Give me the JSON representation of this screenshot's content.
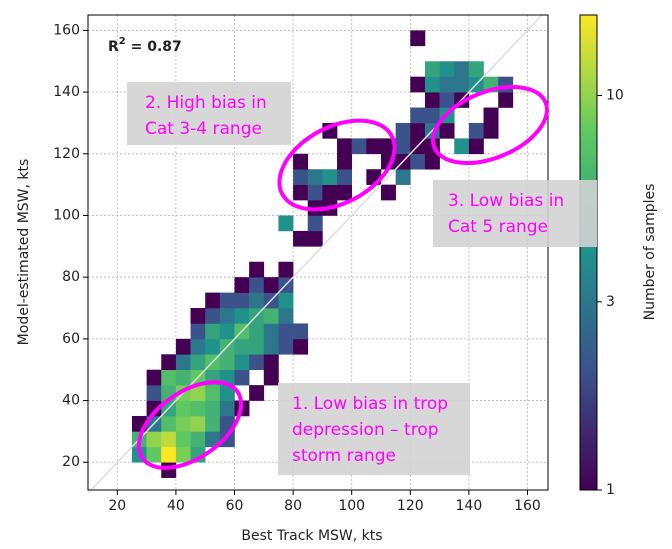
{
  "chart_data": {
    "type": "heatmap",
    "xlabel": "Best Track MSW, kts",
    "ylabel": "Model-estimated MSW, kts",
    "xlim": [
      10,
      167
    ],
    "ylim": [
      11,
      165
    ],
    "xticks": [
      20,
      40,
      60,
      80,
      100,
      120,
      140,
      160
    ],
    "yticks": [
      20,
      40,
      60,
      80,
      100,
      120,
      140,
      160
    ],
    "grid": true,
    "bin_size": 5,
    "cells": [
      [
        35,
        15,
        1
      ],
      [
        25,
        20,
        4
      ],
      [
        30,
        20,
        8
      ],
      [
        35,
        20,
        16
      ],
      [
        40,
        20,
        9
      ],
      [
        45,
        20,
        5
      ],
      [
        25,
        25,
        6
      ],
      [
        30,
        25,
        10
      ],
      [
        35,
        25,
        12
      ],
      [
        40,
        25,
        8
      ],
      [
        45,
        25,
        6
      ],
      [
        50,
        25,
        3
      ],
      [
        55,
        25,
        2
      ],
      [
        25,
        30,
        1
      ],
      [
        30,
        30,
        3
      ],
      [
        35,
        30,
        7
      ],
      [
        40,
        30,
        9
      ],
      [
        45,
        30,
        10
      ],
      [
        50,
        30,
        6
      ],
      [
        55,
        30,
        2
      ],
      [
        30,
        35,
        1
      ],
      [
        35,
        35,
        5
      ],
      [
        40,
        35,
        8
      ],
      [
        45,
        35,
        7
      ],
      [
        50,
        35,
        6
      ],
      [
        55,
        35,
        3
      ],
      [
        60,
        35,
        1
      ],
      [
        30,
        40,
        2
      ],
      [
        35,
        40,
        6
      ],
      [
        40,
        40,
        9
      ],
      [
        45,
        40,
        10
      ],
      [
        50,
        40,
        7
      ],
      [
        55,
        40,
        4
      ],
      [
        65,
        40,
        1
      ],
      [
        30,
        45,
        1
      ],
      [
        35,
        45,
        7
      ],
      [
        40,
        45,
        6
      ],
      [
        45,
        45,
        8
      ],
      [
        50,
        45,
        5
      ],
      [
        55,
        45,
        4
      ],
      [
        60,
        45,
        2
      ],
      [
        70,
        45,
        1
      ],
      [
        35,
        50,
        1
      ],
      [
        40,
        50,
        3
      ],
      [
        45,
        50,
        5
      ],
      [
        50,
        50,
        7
      ],
      [
        55,
        50,
        6
      ],
      [
        60,
        50,
        4
      ],
      [
        65,
        50,
        2
      ],
      [
        70,
        50,
        1
      ],
      [
        40,
        55,
        1
      ],
      [
        45,
        55,
        3
      ],
      [
        50,
        55,
        4
      ],
      [
        55,
        55,
        6
      ],
      [
        60,
        55,
        5
      ],
      [
        65,
        55,
        5
      ],
      [
        70,
        55,
        3
      ],
      [
        75,
        55,
        2
      ],
      [
        80,
        55,
        1
      ],
      [
        45,
        60,
        2
      ],
      [
        50,
        60,
        5
      ],
      [
        55,
        60,
        4
      ],
      [
        60,
        60,
        7
      ],
      [
        65,
        60,
        5
      ],
      [
        70,
        60,
        3
      ],
      [
        75,
        60,
        2
      ],
      [
        80,
        60,
        2
      ],
      [
        45,
        65,
        1
      ],
      [
        50,
        65,
        2
      ],
      [
        55,
        65,
        3
      ],
      [
        60,
        65,
        4
      ],
      [
        65,
        65,
        5
      ],
      [
        70,
        65,
        6
      ],
      [
        75,
        65,
        3
      ],
      [
        50,
        70,
        1
      ],
      [
        55,
        70,
        2
      ],
      [
        60,
        70,
        2
      ],
      [
        65,
        70,
        3
      ],
      [
        70,
        70,
        2
      ],
      [
        75,
        70,
        4
      ],
      [
        60,
        75,
        1
      ],
      [
        65,
        75,
        2
      ],
      [
        70,
        75,
        1
      ],
      [
        75,
        75,
        2
      ],
      [
        65,
        80,
        1
      ],
      [
        75,
        80,
        1
      ],
      [
        80,
        90,
        1
      ],
      [
        85,
        90,
        1
      ],
      [
        75,
        95,
        4
      ],
      [
        85,
        95,
        2
      ],
      [
        85,
        100,
        1
      ],
      [
        90,
        100,
        1
      ],
      [
        80,
        105,
        1
      ],
      [
        85,
        105,
        2
      ],
      [
        90,
        105,
        1
      ],
      [
        95,
        105,
        1
      ],
      [
        110,
        105,
        1
      ],
      [
        80,
        110,
        2
      ],
      [
        85,
        110,
        3
      ],
      [
        90,
        110,
        4
      ],
      [
        95,
        110,
        2
      ],
      [
        105,
        110,
        1
      ],
      [
        115,
        110,
        3
      ],
      [
        80,
        115,
        1
      ],
      [
        95,
        115,
        1
      ],
      [
        110,
        115,
        1
      ],
      [
        115,
        115,
        1
      ],
      [
        120,
        115,
        2
      ],
      [
        125,
        115,
        1
      ],
      [
        95,
        120,
        1
      ],
      [
        100,
        120,
        2
      ],
      [
        105,
        120,
        1
      ],
      [
        110,
        120,
        1
      ],
      [
        115,
        120,
        2
      ],
      [
        120,
        120,
        1
      ],
      [
        125,
        120,
        1
      ],
      [
        135,
        120,
        4
      ],
      [
        140,
        120,
        1
      ],
      [
        90,
        125,
        1
      ],
      [
        115,
        125,
        2
      ],
      [
        120,
        125,
        1
      ],
      [
        125,
        125,
        3
      ],
      [
        130,
        125,
        1
      ],
      [
        140,
        125,
        2
      ],
      [
        145,
        125,
        1
      ],
      [
        120,
        130,
        2
      ],
      [
        125,
        130,
        2
      ],
      [
        130,
        130,
        4
      ],
      [
        145,
        130,
        1
      ],
      [
        125,
        135,
        1
      ],
      [
        130,
        135,
        2
      ],
      [
        135,
        135,
        1
      ],
      [
        150,
        135,
        1
      ],
      [
        120,
        140,
        1
      ],
      [
        125,
        140,
        4
      ],
      [
        130,
        140,
        3
      ],
      [
        135,
        140,
        3
      ],
      [
        140,
        140,
        4
      ],
      [
        145,
        140,
        6
      ],
      [
        150,
        140,
        2
      ],
      [
        125,
        145,
        5
      ],
      [
        130,
        145,
        4
      ],
      [
        135,
        145,
        3
      ],
      [
        140,
        145,
        5
      ],
      [
        120,
        155,
        1
      ]
    ],
    "colorbar": {
      "label": "Number of samples",
      "scale": "log",
      "lim": [
        1,
        16
      ],
      "ticks": [
        1,
        3,
        10
      ]
    },
    "r_squared": {
      "symbol": "R",
      "exponent": "2",
      "text": " = 0.87"
    },
    "annotations": [
      {
        "lines": [
          "1. Low bias in trop",
          "depression – trop",
          "storm range"
        ]
      },
      {
        "lines": [
          "2. High bias in",
          "Cat 3-4 range"
        ]
      },
      {
        "lines": [
          "3. Low bias in",
          "Cat 5 range"
        ]
      }
    ]
  }
}
